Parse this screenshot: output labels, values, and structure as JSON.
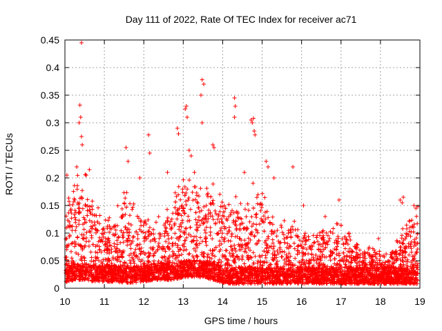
{
  "chart_data": {
    "type": "scatter",
    "title": "Day 111 of 2022, Rate Of TEC Index for receiver ac71",
    "xlabel": "GPS time / hours",
    "ylabel": "ROTI / TECUs",
    "xlim": [
      10,
      19
    ],
    "ylim": [
      0,
      0.45
    ],
    "xticks": [
      "10",
      "11",
      "12",
      "13",
      "14",
      "15",
      "16",
      "17",
      "18",
      "19"
    ],
    "yticks": [
      "0",
      "0.05",
      "0.1",
      "0.15",
      "0.2",
      "0.25",
      "0.3",
      "0.35",
      "0.4",
      "0.45"
    ],
    "grid": true,
    "marker": "+",
    "color": "#ff0000",
    "envelope": {
      "x": [
        10.0,
        10.25,
        10.5,
        10.75,
        11.0,
        11.25,
        11.5,
        11.75,
        12.0,
        12.25,
        12.5,
        12.75,
        13.0,
        13.25,
        13.5,
        13.75,
        14.0,
        14.25,
        14.5,
        14.75,
        15.0,
        15.25,
        15.5,
        15.75,
        16.0,
        16.25,
        16.5,
        16.75,
        17.0,
        17.25,
        17.5,
        17.75,
        18.0,
        18.25,
        18.5,
        18.75,
        18.95
      ],
      "typical_max": [
        0.16,
        0.18,
        0.2,
        0.15,
        0.12,
        0.13,
        0.17,
        0.14,
        0.13,
        0.14,
        0.12,
        0.15,
        0.19,
        0.2,
        0.18,
        0.17,
        0.16,
        0.15,
        0.14,
        0.17,
        0.16,
        0.14,
        0.12,
        0.12,
        0.1,
        0.09,
        0.1,
        0.11,
        0.11,
        0.09,
        0.07,
        0.07,
        0.06,
        0.06,
        0.1,
        0.12,
        0.12
      ],
      "floor": [
        0.01,
        0.015,
        0.015,
        0.012,
        0.012,
        0.012,
        0.01,
        0.01,
        0.012,
        0.015,
        0.015,
        0.015,
        0.02,
        0.02,
        0.02,
        0.015,
        0.01,
        0.008,
        0.008,
        0.008,
        0.008,
        0.008,
        0.008,
        0.008,
        0.008,
        0.008,
        0.008,
        0.008,
        0.008,
        0.008,
        0.008,
        0.008,
        0.008,
        0.008,
        0.008,
        0.008,
        0.008
      ]
    },
    "highlights": [
      {
        "x": 10.42,
        "y": 0.445
      },
      {
        "x": 10.38,
        "y": 0.332
      },
      {
        "x": 10.4,
        "y": 0.31
      },
      {
        "x": 10.36,
        "y": 0.3
      },
      {
        "x": 10.42,
        "y": 0.275
      },
      {
        "x": 10.44,
        "y": 0.26
      },
      {
        "x": 10.05,
        "y": 0.205
      },
      {
        "x": 10.3,
        "y": 0.22
      },
      {
        "x": 10.62,
        "y": 0.215
      },
      {
        "x": 11.55,
        "y": 0.255
      },
      {
        "x": 11.6,
        "y": 0.23
      },
      {
        "x": 11.9,
        "y": 0.2
      },
      {
        "x": 12.12,
        "y": 0.278
      },
      {
        "x": 12.15,
        "y": 0.245
      },
      {
        "x": 12.6,
        "y": 0.21
      },
      {
        "x": 12.85,
        "y": 0.29
      },
      {
        "x": 12.88,
        "y": 0.28
      },
      {
        "x": 13.05,
        "y": 0.325
      },
      {
        "x": 13.08,
        "y": 0.33
      },
      {
        "x": 13.1,
        "y": 0.31
      },
      {
        "x": 13.15,
        "y": 0.25
      },
      {
        "x": 13.2,
        "y": 0.24
      },
      {
        "x": 13.48,
        "y": 0.378
      },
      {
        "x": 13.52,
        "y": 0.37
      },
      {
        "x": 13.45,
        "y": 0.35
      },
      {
        "x": 13.48,
        "y": 0.3
      },
      {
        "x": 13.75,
        "y": 0.26
      },
      {
        "x": 13.78,
        "y": 0.255
      },
      {
        "x": 14.3,
        "y": 0.345
      },
      {
        "x": 14.32,
        "y": 0.33
      },
      {
        "x": 14.3,
        "y": 0.31
      },
      {
        "x": 14.72,
        "y": 0.305
      },
      {
        "x": 14.75,
        "y": 0.3
      },
      {
        "x": 14.78,
        "y": 0.308
      },
      {
        "x": 14.8,
        "y": 0.285
      },
      {
        "x": 14.82,
        "y": 0.278
      },
      {
        "x": 14.55,
        "y": 0.21
      },
      {
        "x": 15.1,
        "y": 0.23
      },
      {
        "x": 15.15,
        "y": 0.22
      },
      {
        "x": 15.3,
        "y": 0.2
      },
      {
        "x": 15.78,
        "y": 0.22
      },
      {
        "x": 16.05,
        "y": 0.15
      },
      {
        "x": 16.6,
        "y": 0.13
      },
      {
        "x": 16.95,
        "y": 0.16
      },
      {
        "x": 17.2,
        "y": 0.1
      },
      {
        "x": 17.95,
        "y": 0.09
      },
      {
        "x": 18.5,
        "y": 0.16
      },
      {
        "x": 18.58,
        "y": 0.165
      },
      {
        "x": 18.55,
        "y": 0.155
      },
      {
        "x": 18.85,
        "y": 0.15
      },
      {
        "x": 18.9,
        "y": 0.145
      },
      {
        "x": 18.95,
        "y": 0.148
      }
    ]
  }
}
